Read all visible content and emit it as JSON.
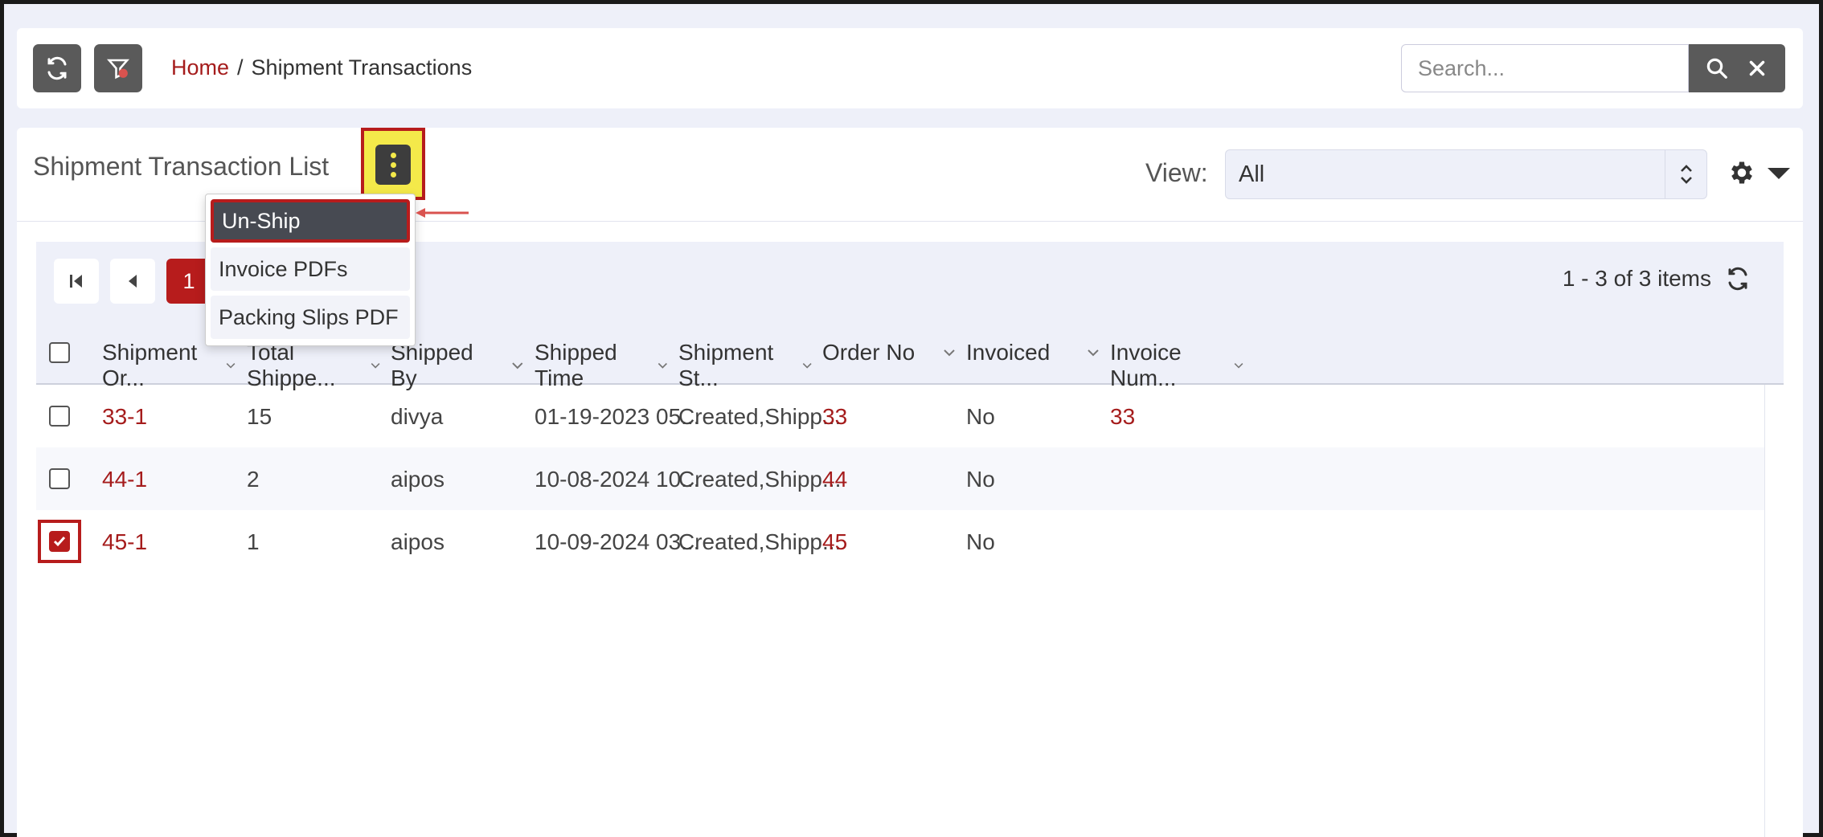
{
  "breadcrumb": {
    "home": "Home",
    "separator": "/",
    "current": "Shipment Transactions"
  },
  "search": {
    "placeholder": "Search..."
  },
  "panel": {
    "title": "Shipment Transaction List",
    "view_label": "View:",
    "view_value": "All"
  },
  "menu": {
    "items": [
      {
        "label": "Un-Ship",
        "active": true
      },
      {
        "label": "Invoice PDFs"
      },
      {
        "label": "Packing Slips PDF"
      }
    ]
  },
  "pager": {
    "current_page": "1",
    "info": "1 - 3 of 3 items"
  },
  "table": {
    "columns": [
      "Shipment Or...",
      "Total Shippe...",
      "Shipped By",
      "Shipped Time",
      "Shipment St...",
      "Order No",
      "Invoiced",
      "Invoice Num..."
    ],
    "rows": [
      {
        "shipment": "33-1",
        "total": "15",
        "by": "divya",
        "time": "01-19-2023 05...",
        "status": "Created,Shipp...",
        "order": "33",
        "invoiced": "No",
        "invoice_num": "33",
        "checked": false
      },
      {
        "shipment": "44-1",
        "total": "2",
        "by": "aipos",
        "time": "10-08-2024 10...",
        "status": "Created,Shipp...",
        "order": "44",
        "invoiced": "No",
        "invoice_num": "",
        "checked": false
      },
      {
        "shipment": "45-1",
        "total": "1",
        "by": "aipos",
        "time": "10-09-2024 03...",
        "status": "Created,Shipp...",
        "order": "45",
        "invoiced": "No",
        "invoice_num": "",
        "checked": true
      }
    ]
  },
  "colors": {
    "accent": "#a51c1c",
    "highlight": "#f4e94a",
    "dark_button": "#5a5a5a"
  },
  "icons": {
    "refresh": "refresh-icon",
    "filter": "filter-clear-icon",
    "search": "search-icon",
    "close": "close-icon",
    "kebab": "kebab-icon",
    "gear": "gear-icon"
  }
}
